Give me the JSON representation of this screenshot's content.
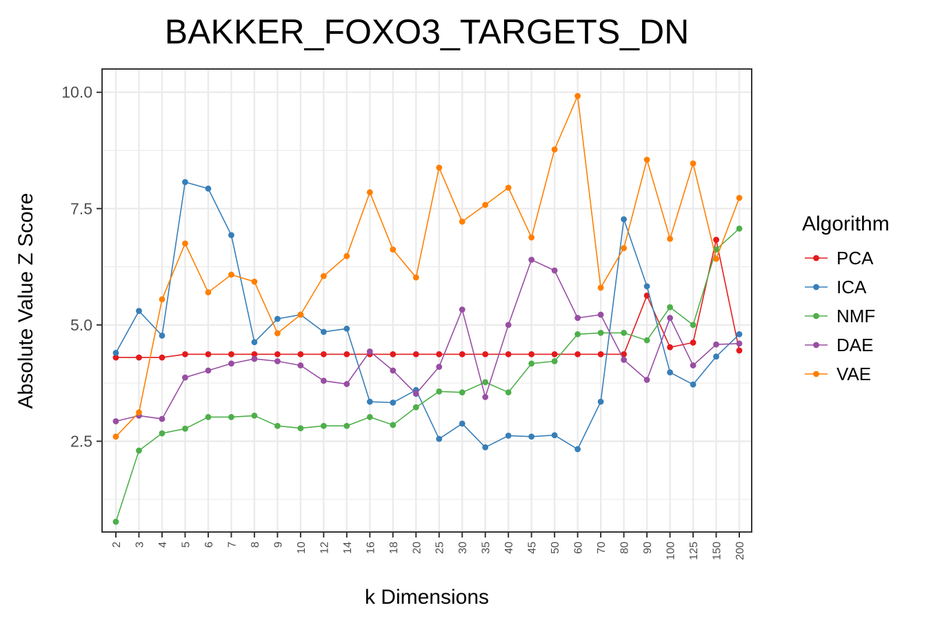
{
  "chart_data": {
    "type": "line",
    "title": "BAKKER_FOXO3_TARGETS_DN",
    "xlabel": "k Dimensions",
    "ylabel": "Absolute Value Z Score",
    "categories": [
      "2",
      "3",
      "4",
      "5",
      "6",
      "7",
      "8",
      "9",
      "10",
      "12",
      "14",
      "16",
      "18",
      "20",
      "25",
      "30",
      "35",
      "40",
      "45",
      "50",
      "60",
      "70",
      "80",
      "90",
      "100",
      "125",
      "150",
      "200"
    ],
    "ylim": [
      0.55,
      10.5
    ],
    "yticks": [
      "2.5",
      "5.0",
      "7.5",
      "10.0"
    ],
    "ytick_values": [
      2.5,
      5.0,
      7.5,
      10.0
    ],
    "grid": true,
    "legend": {
      "title": "Algorithm",
      "position": "right"
    },
    "series": [
      {
        "name": "PCA",
        "color": "#e41a1c",
        "values": [
          4.3,
          4.3,
          4.3,
          4.37,
          4.37,
          4.37,
          4.37,
          4.37,
          4.37,
          4.37,
          4.37,
          4.37,
          4.37,
          4.37,
          4.37,
          4.37,
          4.37,
          4.37,
          4.37,
          4.37,
          4.37,
          4.37,
          4.37,
          5.63,
          4.52,
          4.62,
          6.83,
          4.45
        ]
      },
      {
        "name": "ICA",
        "color": "#377eb8",
        "values": [
          4.4,
          5.3,
          4.77,
          8.07,
          7.93,
          6.93,
          4.63,
          5.13,
          5.22,
          4.85,
          4.92,
          3.35,
          3.33,
          3.6,
          2.55,
          2.88,
          2.37,
          2.62,
          2.6,
          2.63,
          2.33,
          3.35,
          7.27,
          5.83,
          3.98,
          3.72,
          4.32,
          4.8
        ]
      },
      {
        "name": "NMF",
        "color": "#4daf4a",
        "values": [
          0.77,
          2.3,
          2.67,
          2.77,
          3.02,
          3.02,
          3.05,
          2.83,
          2.78,
          2.83,
          2.83,
          3.02,
          2.85,
          3.23,
          3.57,
          3.55,
          3.77,
          3.55,
          4.17,
          4.22,
          4.8,
          4.83,
          4.83,
          4.67,
          5.38,
          5.0,
          6.62,
          7.07
        ]
      },
      {
        "name": "DAE",
        "color": "#984ea3",
        "values": [
          2.93,
          3.05,
          2.98,
          3.87,
          4.02,
          4.17,
          4.27,
          4.22,
          4.13,
          3.8,
          3.73,
          4.43,
          4.02,
          3.52,
          4.1,
          5.33,
          3.45,
          5.0,
          6.4,
          6.17,
          5.15,
          5.22,
          4.25,
          3.82,
          5.15,
          4.13,
          4.58,
          4.6
        ]
      },
      {
        "name": "VAE",
        "color": "#ff7f00",
        "values": [
          2.6,
          3.12,
          5.55,
          6.75,
          5.7,
          6.08,
          5.93,
          4.82,
          5.22,
          6.05,
          6.48,
          7.85,
          6.62,
          6.02,
          8.38,
          7.22,
          7.58,
          7.95,
          6.88,
          8.77,
          9.92,
          5.8,
          6.65,
          8.55,
          6.85,
          8.47,
          6.42,
          7.73
        ]
      }
    ]
  }
}
